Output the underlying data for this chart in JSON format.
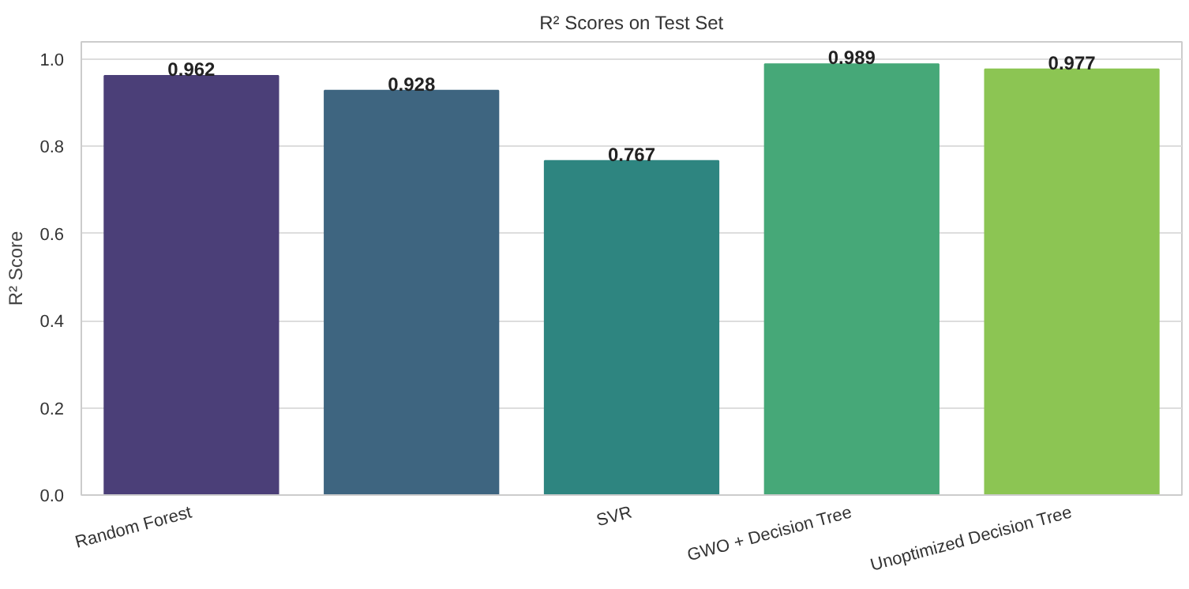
{
  "chart_data": {
    "type": "bar",
    "title": "R² Scores on Test Set",
    "ylabel": "R² Score",
    "categories": [
      "Random Forest",
      null,
      "SVR",
      "GWO + Decision Tree",
      "Unoptimized Decision Tree"
    ],
    "values": [
      0.962,
      0.928,
      0.767,
      0.989,
      0.977
    ],
    "colors": [
      "#4b3f78",
      "#3e6580",
      "#2e8580",
      "#46a878",
      "#8cc553"
    ],
    "ylim": [
      0,
      1.04
    ],
    "yticks": [
      {
        "value": 0,
        "label": "0.0"
      },
      {
        "value": 0.2,
        "label": "0.2"
      },
      {
        "value": 0.4,
        "label": "0.4"
      },
      {
        "value": 0.6,
        "label": "0.6"
      },
      {
        "value": 0.8,
        "label": "0.8"
      },
      {
        "value": 1,
        "label": "1.0"
      }
    ],
    "grid": "y",
    "data_labels": true
  }
}
